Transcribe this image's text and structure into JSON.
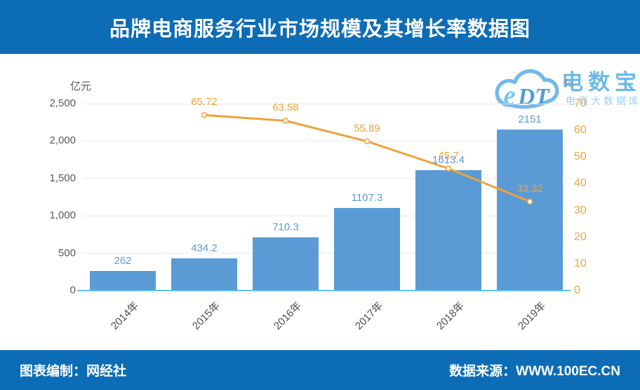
{
  "header": {
    "title": "品牌电商服务行业市场规模及其增长率数据图"
  },
  "footer": {
    "left": "图表编制：网经社",
    "right": "数据来源：WWW.100EC.CN"
  },
  "logo": {
    "mark": "eDT",
    "name": "电数宝",
    "subtitle": "电商大数据库"
  },
  "colors": {
    "banner_blue": "#0D6CB6",
    "bar_blue": "#5B9BD5",
    "line_orange": "#F0A23C",
    "baseline_cyan": "#5EC1E8",
    "grid_gray": "#E6EBF0",
    "tick_gray": "#595959",
    "logo_blue": "#6CB9EA"
  },
  "chart_data": {
    "type": "bar",
    "title": "品牌电商服务行业市场规模及其增长率数据图",
    "categories": [
      "2014年",
      "2015年",
      "2016年",
      "2017年",
      "2018年",
      "2019年"
    ],
    "series": [
      {
        "name": "市场规模",
        "type": "bar",
        "axis": "left",
        "values": [
          262,
          434.2,
          710.3,
          1107.3,
          1613.4,
          2151
        ],
        "color": "#5B9BD5"
      },
      {
        "name": "增长率",
        "type": "line",
        "axis": "right",
        "values": [
          null,
          65.72,
          63.58,
          55.89,
          45.7,
          33.32
        ],
        "color": "#F0A23C"
      }
    ],
    "left_axis": {
      "unit": "亿元",
      "ylim": [
        0,
        2500
      ],
      "ticks": [
        "2,500",
        "2,000",
        "1,500",
        "1,000",
        "500",
        "0"
      ],
      "tick_values": [
        2500,
        2000,
        1500,
        1000,
        500,
        0
      ]
    },
    "right_axis": {
      "unit": "%",
      "ylim": [
        0,
        70
      ],
      "ticks": [
        "70",
        "60",
        "50",
        "40",
        "30",
        "20",
        "10",
        "0"
      ],
      "tick_values": [
        70,
        60,
        50,
        40,
        30,
        20,
        10,
        0
      ]
    },
    "grid": true,
    "legend": "none"
  }
}
